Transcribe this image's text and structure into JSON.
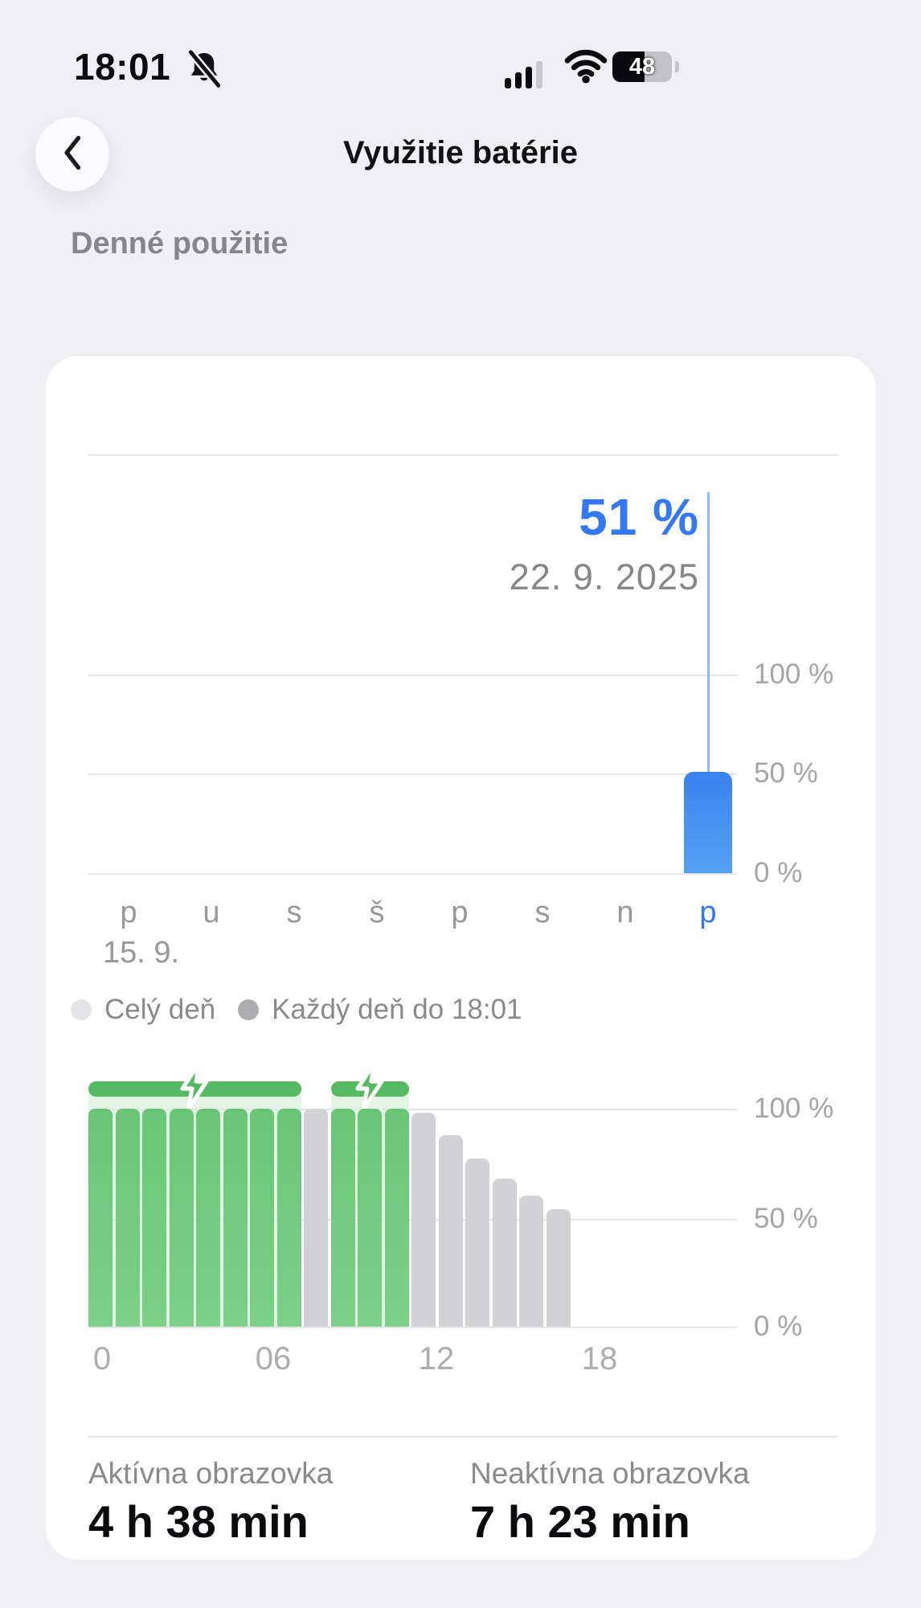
{
  "status_bar": {
    "time": "18:01",
    "battery_percent": "48"
  },
  "nav": {
    "title": "Využitie batérie"
  },
  "section_title": "Denné použitie",
  "legend": [
    {
      "label": "Celý deň",
      "color": "#E3E3E8"
    },
    {
      "label": "Každý deň do 18:01",
      "color": "#ACACB1"
    }
  ],
  "stats": [
    {
      "label": "Aktívna obrazovka",
      "value": "4 h 38 min"
    },
    {
      "label": "Neaktívna obrazovka",
      "value": "7 h 23 min"
    }
  ],
  "chart_data": [
    {
      "id": "daily-battery-usage-week",
      "type": "bar",
      "title": "Denné použitie",
      "callout": {
        "value": "51 %",
        "date": "22. 9. 2025"
      },
      "categories": [
        "p",
        "u",
        "s",
        "š",
        "p",
        "s",
        "n",
        "p"
      ],
      "values": [
        null,
        null,
        null,
        null,
        null,
        null,
        null,
        51
      ],
      "selected_index": 7,
      "x_start_label": "15. 9.",
      "y_ticks": [
        "100 %",
        "50 %",
        "0 %"
      ],
      "y_tick_values": [
        100,
        50,
        0
      ],
      "ylim": [
        0,
        100
      ],
      "grid": "horizontal",
      "bar_color_top": "#3B82EE",
      "bar_color_bottom": "#55A1F5",
      "accent_color": "#3478F6",
      "selection_line_color": "#8FB9EF"
    },
    {
      "id": "battery-level-today",
      "type": "bar",
      "x_hours": [
        0,
        1,
        2,
        3,
        4,
        5,
        6,
        7,
        8,
        9,
        10,
        11,
        12,
        13,
        14,
        15,
        16,
        17
      ],
      "values": [
        100,
        100,
        100,
        100,
        100,
        100,
        100,
        100,
        100,
        100,
        100,
        100,
        98,
        88,
        77,
        68,
        60,
        54
      ],
      "states": [
        "charging",
        "charging",
        "charging",
        "charging",
        "charging",
        "charging",
        "charging",
        "charging",
        "normal",
        "charging",
        "charging",
        "charging",
        "normal",
        "normal",
        "normal",
        "normal",
        "normal",
        "normal"
      ],
      "charging_groups": [
        {
          "from": 0,
          "to": 7
        },
        {
          "from": 9,
          "to": 11
        }
      ],
      "x_ticks": [
        "0",
        "06",
        "12",
        "18"
      ],
      "x_tick_hours": [
        0,
        6,
        12,
        18
      ],
      "y_ticks": [
        "100 %",
        "50 %",
        "0 %"
      ],
      "y_tick_values": [
        100,
        50,
        0
      ],
      "ylim": [
        0,
        100
      ],
      "grid": "horizontal",
      "charging_color": "#6FC97A",
      "charging_cap_color": "#54BA61",
      "charging_bg_color": "#E2F4E4",
      "normal_color": "#D1D1D6"
    }
  ]
}
